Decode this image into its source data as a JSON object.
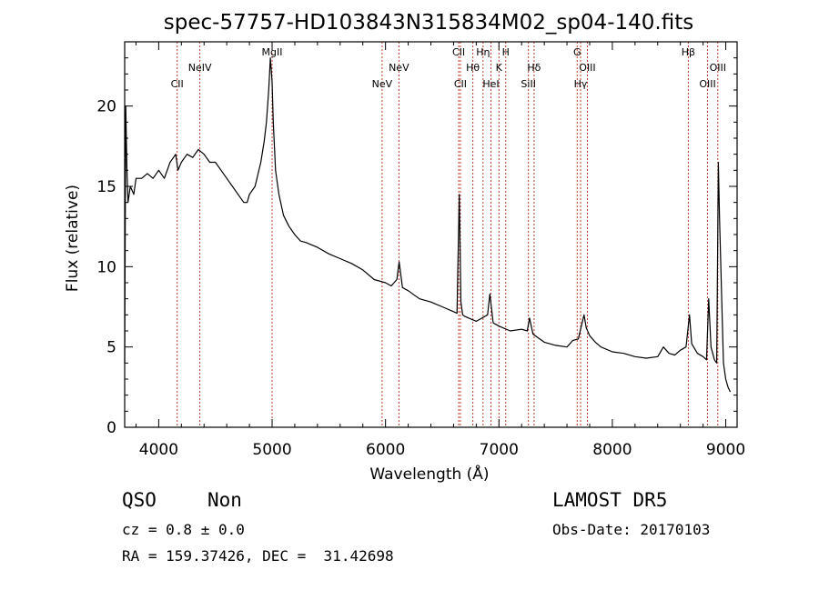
{
  "chart_data": {
    "type": "line",
    "title": "spec-57757-HD103843N315834M02_sp04-140.fits",
    "xlabel": "Wavelength (Å)",
    "ylabel": "Flux (relative)",
    "xlim": [
      3700,
      9100
    ],
    "ylim": [
      0,
      24
    ],
    "xticks": [
      4000,
      5000,
      6000,
      7000,
      8000,
      9000
    ],
    "yticks": [
      0,
      5,
      10,
      15,
      20
    ],
    "grid": false,
    "legend": "none",
    "series": [
      {
        "color": "#000000",
        "x": [
          3700,
          3710,
          3720,
          3730,
          3750,
          3780,
          3800,
          3850,
          3900,
          3950,
          4000,
          4050,
          4100,
          4150,
          4170,
          4200,
          4250,
          4300,
          4350,
          4400,
          4450,
          4500,
          4550,
          4600,
          4650,
          4700,
          4750,
          4780,
          4800,
          4850,
          4900,
          4930,
          4950,
          4970,
          4985,
          5000,
          5010,
          5030,
          5060,
          5100,
          5150,
          5200,
          5250,
          5300,
          5400,
          5500,
          5600,
          5700,
          5800,
          5900,
          6000,
          6050,
          6100,
          6120,
          6150,
          6200,
          6300,
          6400,
          6500,
          6600,
          6630,
          6650,
          6665,
          6680,
          6700,
          6800,
          6850,
          6900,
          6920,
          6950,
          7000,
          7100,
          7200,
          7250,
          7270,
          7300,
          7400,
          7500,
          7600,
          7650,
          7700,
          7750,
          7770,
          7800,
          7850,
          7900,
          8000,
          8100,
          8200,
          8300,
          8400,
          8450,
          8500,
          8550,
          8600,
          8650,
          8680,
          8700,
          8750,
          8800,
          8830,
          8850,
          8870,
          8900,
          8920,
          8935,
          8945,
          8960,
          8980,
          9000,
          9020,
          9040
        ],
        "y": [
          4.0,
          20.0,
          16.0,
          14.0,
          15.0,
          14.5,
          15.5,
          15.5,
          15.8,
          15.5,
          16.0,
          15.5,
          16.5,
          17.0,
          16.0,
          16.5,
          17.0,
          16.8,
          17.3,
          17.0,
          16.5,
          16.5,
          16.0,
          15.5,
          15.0,
          14.5,
          14.0,
          14.0,
          14.5,
          15.0,
          16.5,
          17.8,
          19.0,
          21.0,
          23.0,
          21.5,
          19.0,
          16.0,
          14.5,
          13.2,
          12.5,
          12.0,
          11.6,
          11.5,
          11.2,
          10.8,
          10.5,
          10.2,
          9.8,
          9.2,
          9.0,
          8.8,
          9.2,
          10.3,
          8.7,
          8.5,
          8.0,
          7.8,
          7.5,
          7.2,
          7.1,
          14.5,
          7.8,
          7.0,
          6.9,
          6.6,
          6.8,
          7.0,
          8.3,
          6.5,
          6.3,
          6.0,
          6.1,
          6.0,
          6.8,
          5.8,
          5.3,
          5.1,
          5.0,
          5.4,
          5.5,
          7.0,
          6.2,
          5.7,
          5.3,
          5.0,
          4.7,
          4.6,
          4.4,
          4.3,
          4.4,
          5.0,
          4.6,
          4.5,
          4.8,
          5.0,
          7.0,
          5.2,
          4.6,
          4.4,
          4.2,
          8.0,
          5.0,
          4.2,
          4.0,
          16.5,
          13.0,
          9.0,
          4.0,
          3.0,
          2.5,
          2.2
        ]
      }
    ],
    "spectral_lines": [
      {
        "label": "CII",
        "x": 4163,
        "row": 2
      },
      {
        "label": "NeIV",
        "x": 4363,
        "row": 1
      },
      {
        "label": "MgII",
        "x": 5000,
        "row": 0
      },
      {
        "label": "NeV",
        "x": 5970,
        "row": 2
      },
      {
        "label": "NeV",
        "x": 6118,
        "row": 1
      },
      {
        "label": "CII",
        "x": 6645,
        "row": 0
      },
      {
        "label": "CII",
        "x": 6660,
        "row": 2
      },
      {
        "label": "Hθ",
        "x": 6770,
        "row": 1
      },
      {
        "label": "Hη",
        "x": 6860,
        "row": 0
      },
      {
        "label": "HeI",
        "x": 6930,
        "row": 2
      },
      {
        "label": "K",
        "x": 7000,
        "row": 1
      },
      {
        "label": "H",
        "x": 7060,
        "row": 0
      },
      {
        "label": "SiII",
        "x": 7260,
        "row": 2
      },
      {
        "label": "Hδ",
        "x": 7310,
        "row": 1
      },
      {
        "label": "G",
        "x": 7690,
        "row": 0
      },
      {
        "label": "Hγ",
        "x": 7720,
        "row": 2
      },
      {
        "label": "OIII",
        "x": 7780,
        "row": 1
      },
      {
        "label": "Hβ",
        "x": 8670,
        "row": 0
      },
      {
        "label": "OIII",
        "x": 8840,
        "row": 2
      },
      {
        "label": "OIII",
        "x": 8930,
        "row": 1
      }
    ]
  },
  "info": {
    "class_label": "QSO",
    "subclass_label": "Non",
    "survey_label": "LAMOST DR5",
    "cz_label": "cz = 0.8 ± 0.0",
    "obs_date_label": "Obs-Date: 20170103",
    "radec_label": "RA = 159.37426, DEC =  31.42698"
  },
  "colors": {
    "line_marker": "#c0392b",
    "spectrum": "#000000",
    "axes": "#000000"
  }
}
